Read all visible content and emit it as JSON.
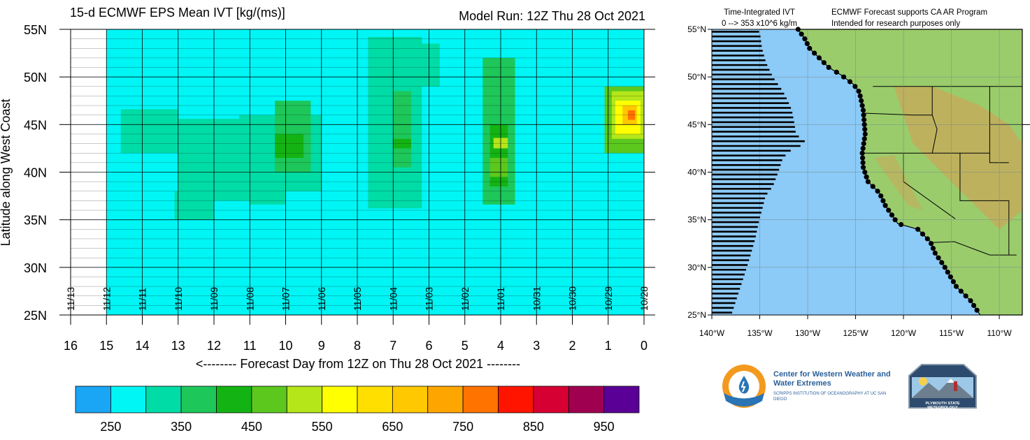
{
  "main": {
    "title": "15-d ECMWF EPS Mean IVT [kg/(ms)]",
    "model_run": "Model Run: 12Z Thu 28 Oct 2021",
    "ylabel": "Latitude along West Coast",
    "xlabel": "<-------- Forecast Day from 12Z on Thu 28 Oct 2021 --------"
  },
  "chart_data": [
    {
      "type": "heatmap",
      "title": "15-d ECMWF EPS Mean IVT [kg/(ms)]",
      "subtitle": "Model Run: 12Z Thu 28 Oct 2021",
      "xlabel": "<-------- Forecast Day from 12Z on Thu 28 Oct 2021 --------",
      "ylabel": "Latitude along West Coast",
      "x_range": [
        16,
        0
      ],
      "y_range": [
        25,
        55
      ],
      "x_ticks": [
        16,
        15,
        14,
        13,
        12,
        11,
        10,
        9,
        8,
        7,
        6,
        5,
        4,
        3,
        2,
        1,
        0
      ],
      "y_ticks": [
        "55N",
        "50N",
        "45N",
        "40N",
        "35N",
        "30N",
        "25N"
      ],
      "y_tick_values": [
        55,
        50,
        45,
        40,
        35,
        30,
        25
      ],
      "date_labels": [
        {
          "day": 16,
          "label": "11/13"
        },
        {
          "day": 15,
          "label": "11/12"
        },
        {
          "day": 14,
          "label": "11/11"
        },
        {
          "day": 13,
          "label": "11/10"
        },
        {
          "day": 12,
          "label": "11/09"
        },
        {
          "day": 11,
          "label": "11/08"
        },
        {
          "day": 10,
          "label": "11/07"
        },
        {
          "day": 9,
          "label": "11/06"
        },
        {
          "day": 8,
          "label": "11/05"
        },
        {
          "day": 7,
          "label": "11/04"
        },
        {
          "day": 6,
          "label": "11/03"
        },
        {
          "day": 5,
          "label": "11/02"
        },
        {
          "day": 4,
          "label": "11/01"
        },
        {
          "day": 3,
          "label": "10/31"
        },
        {
          "day": 2,
          "label": "10/30"
        },
        {
          "day": 1,
          "label": "10/29"
        },
        {
          "day": 0,
          "label": "10/28"
        }
      ],
      "forecast_extent_day": 15,
      "background_level": 250,
      "features": [
        {
          "name": "day 13-9 plume",
          "cells": [
            {
              "x": [
                14.6,
                13.0
              ],
              "y": [
                42.0,
                46.6
              ],
              "value": 300
            },
            {
              "x": [
                13.0,
                10.5
              ],
              "y": [
                37.0,
                45.6
              ],
              "value": 300
            },
            {
              "x": [
                11.3,
                9.0
              ],
              "y": [
                38.0,
                46.0
              ],
              "value": 300
            },
            {
              "x": [
                11.0,
                10.0
              ],
              "y": [
                36.6,
                40.0
              ],
              "value": 300
            },
            {
              "x": [
                13.1,
                12.0
              ],
              "y": [
                35.0,
                38.0
              ],
              "value": 300
            },
            {
              "x": [
                10.3,
                9.3
              ],
              "y": [
                40.0,
                47.5
              ],
              "value": 350
            },
            {
              "x": [
                10.3,
                9.5
              ],
              "y": [
                41.5,
                44.0
              ],
              "value": 400
            }
          ]
        },
        {
          "name": "day 7-6 plume",
          "cells": [
            {
              "x": [
                7.7,
                6.2
              ],
              "y": [
                36.2,
                54.2
              ],
              "value": 300
            },
            {
              "x": [
                6.7,
                5.7
              ],
              "y": [
                49.0,
                53.5
              ],
              "value": 300
            },
            {
              "x": [
                7.0,
                6.5
              ],
              "y": [
                40.5,
                48.5
              ],
              "value": 350
            },
            {
              "x": [
                7.0,
                6.5
              ],
              "y": [
                42.5,
                43.5
              ],
              "value": 400
            }
          ]
        },
        {
          "name": "day 4 plume",
          "cells": [
            {
              "x": [
                4.5,
                3.6
              ],
              "y": [
                36.6,
                52.0
              ],
              "value": 350
            },
            {
              "x": [
                4.3,
                3.8
              ],
              "y": [
                38.5,
                45.0
              ],
              "value": 400
            },
            {
              "x": [
                4.2,
                3.8
              ],
              "y": [
                42.5,
                43.6
              ],
              "value": 500
            },
            {
              "x": [
                4.3,
                3.8
              ],
              "y": [
                39.5,
                41.5
              ],
              "value": 450
            }
          ]
        },
        {
          "name": "day 1-0 plume",
          "cells": [
            {
              "x": [
                1.1,
                0.0
              ],
              "y": [
                42.0,
                49.0
              ],
              "value": 450
            },
            {
              "x": [
                0.9,
                0.0
              ],
              "y": [
                43.5,
                48.5
              ],
              "value": 500
            },
            {
              "x": [
                0.8,
                0.1
              ],
              "y": [
                44.0,
                47.5
              ],
              "value": 550
            },
            {
              "x": [
                0.6,
                0.2
              ],
              "y": [
                45.0,
                47.0
              ],
              "value": 650
            },
            {
              "x": [
                0.45,
                0.25
              ],
              "y": [
                45.5,
                46.5
              ],
              "value": 750
            }
          ]
        }
      ]
    },
    {
      "type": "bar",
      "title": "Time-Integrated IVT",
      "subtitle": "0 --> 353 x10^6 kg/m",
      "orientation": "horizontal",
      "max_value": 353,
      "lat_range": [
        25,
        55
      ],
      "bar_lat_step": 0.5,
      "profile": [
        {
          "lat": 25.0,
          "value": 72
        },
        {
          "lat": 27.0,
          "value": 95
        },
        {
          "lat": 29.0,
          "value": 118
        },
        {
          "lat": 31.0,
          "value": 140
        },
        {
          "lat": 33.0,
          "value": 160
        },
        {
          "lat": 35.0,
          "value": 175
        },
        {
          "lat": 36.0,
          "value": 185
        },
        {
          "lat": 37.5,
          "value": 198
        },
        {
          "lat": 38.5,
          "value": 225
        },
        {
          "lat": 40.0,
          "value": 245
        },
        {
          "lat": 41.5,
          "value": 262
        },
        {
          "lat": 42.5,
          "value": 300
        },
        {
          "lat": 43.0,
          "value": 353
        },
        {
          "lat": 44.0,
          "value": 310
        },
        {
          "lat": 45.0,
          "value": 305
        },
        {
          "lat": 46.5,
          "value": 295
        },
        {
          "lat": 47.5,
          "value": 280
        },
        {
          "lat": 48.5,
          "value": 262
        },
        {
          "lat": 50.0,
          "value": 225
        },
        {
          "lat": 51.5,
          "value": 200
        },
        {
          "lat": 53.0,
          "value": 185
        },
        {
          "lat": 54.5,
          "value": 178
        },
        {
          "lat": 55.0,
          "value": 170
        }
      ]
    }
  ],
  "colorbar": {
    "levels": [
      200,
      250,
      300,
      350,
      400,
      450,
      500,
      550,
      600,
      650,
      700,
      750,
      800,
      850,
      900,
      950,
      1000
    ],
    "colors": [
      "#1aa6f5",
      "#00f5f5",
      "#00dca5",
      "#1dc75a",
      "#14b314",
      "#5cc81e",
      "#b4e61a",
      "#ffff00",
      "#ffdf00",
      "#ffc800",
      "#ffa500",
      "#ff7300",
      "#ff1400",
      "#d70032",
      "#a00050",
      "#5a0096"
    ],
    "labels": [
      "250",
      "350",
      "450",
      "550",
      "650",
      "750",
      "850",
      "950"
    ]
  },
  "map": {
    "header_title": "Time-Integrated IVT",
    "header_range": "0 --> 353 x10^6 kg/m",
    "note_line1": "ECMWF Forecast supports CA AR Program",
    "note_line2": "Intended for research purposes only",
    "lat_labels": [
      {
        "lat": 55,
        "label": "55°N"
      },
      {
        "lat": 50,
        "label": "50°N"
      },
      {
        "lat": 45,
        "label": "45°N"
      },
      {
        "lat": 40,
        "label": "40°N"
      },
      {
        "lat": 35,
        "label": "35°N"
      },
      {
        "lat": 30,
        "label": "30°N"
      },
      {
        "lat": 25,
        "label": "25°N"
      }
    ],
    "lon_labels": [
      {
        "lon": -140,
        "label": "140°W"
      },
      {
        "lon": -135,
        "label": "135°W"
      },
      {
        "lon": -130,
        "label": "130°W"
      },
      {
        "lon": -125,
        "label": "125°W"
      },
      {
        "lon": -120,
        "label": "120°W"
      },
      {
        "lon": -115,
        "label": "115°W"
      },
      {
        "lon": -110,
        "label": "110°W"
      }
    ],
    "ocean_color": "#8ccaf7",
    "land_color": "#9acc6c",
    "highland_color": "#c8a85a"
  },
  "logos": {
    "cw3e_name": "Center for Western Weather and Water Extremes",
    "cw3e_sub": "SCRIPPS INSTITUTION OF OCEANOGRAPHY AT UC SAN DIEGO",
    "psu_name": "PLYMOUTH STATE METEOROLOGY"
  }
}
